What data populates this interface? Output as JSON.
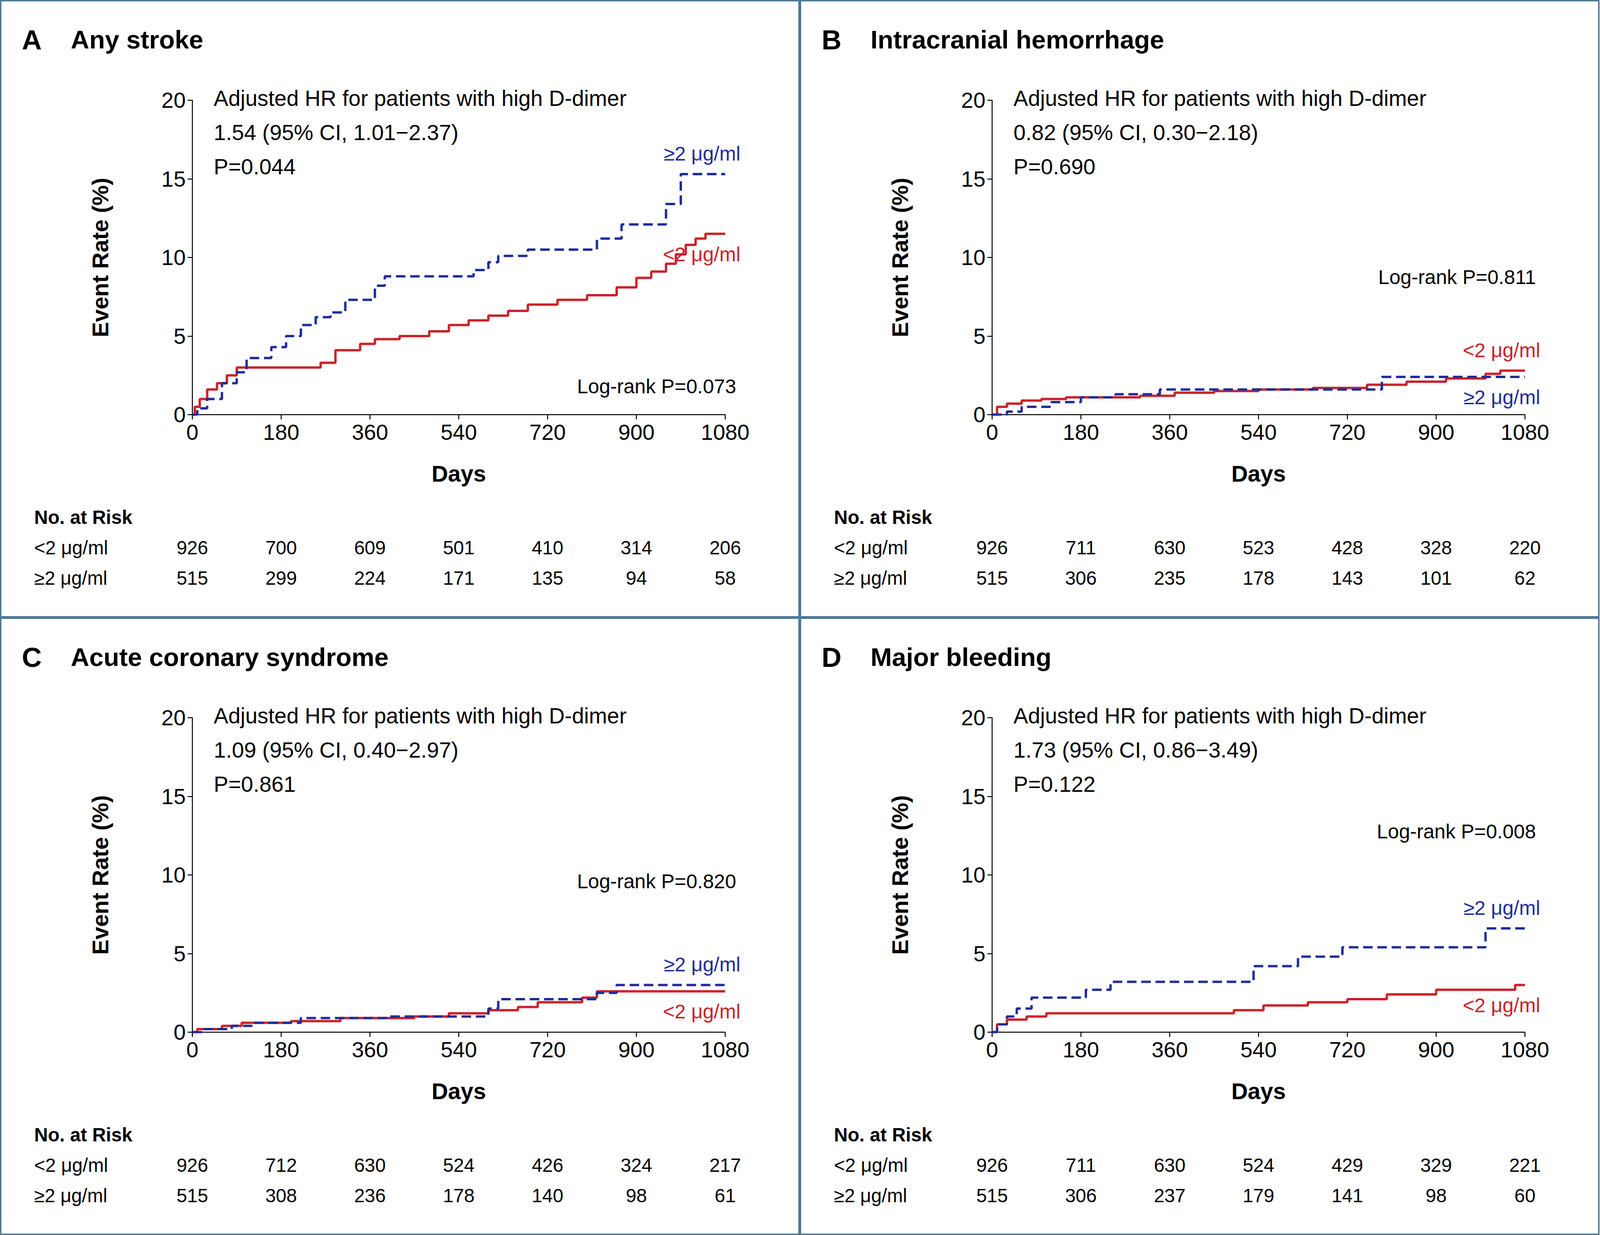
{
  "chart_data": [
    {
      "type": "step",
      "panel": "A",
      "title": "Any stroke",
      "annotations": {
        "hr": [
          "Adjusted HR for patients with high D-dimer",
          "1.54 (95% CI, 1.01−2.37)",
          "P=0.044"
        ],
        "log_rank": "Log-rank P=0.073"
      },
      "xlabel": "Days",
      "ylabel": "Event Rate (%)",
      "xlim": [
        0,
        1080
      ],
      "xticks": [
        0,
        180,
        360,
        540,
        720,
        900,
        1080
      ],
      "ylim": [
        0,
        20
      ],
      "yticks": [
        0,
        5,
        10,
        15,
        20
      ],
      "grid": false,
      "series": [
        {
          "name": "<2 μg/ml",
          "color": "#cc2229",
          "line_style": "solid",
          "x": [
            0,
            5,
            15,
            30,
            50,
            70,
            90,
            260,
            290,
            340,
            370,
            420,
            480,
            520,
            560,
            600,
            640,
            680,
            740,
            800,
            860,
            900,
            930,
            960,
            980,
            1000,
            1020,
            1040,
            1080
          ],
          "values": [
            0,
            0.5,
            1.0,
            1.6,
            2.0,
            2.5,
            3.0,
            3.3,
            4.1,
            4.5,
            4.8,
            5.0,
            5.3,
            5.7,
            6.0,
            6.3,
            6.6,
            7.0,
            7.3,
            7.6,
            8.1,
            8.7,
            9.1,
            9.6,
            10.2,
            10.8,
            11.2,
            11.5,
            11.5
          ]
        },
        {
          "name": "≥2 μg/ml",
          "color": "#1f2d9b",
          "line_style": "dashed",
          "x": [
            0,
            10,
            30,
            60,
            90,
            110,
            160,
            190,
            220,
            250,
            280,
            310,
            370,
            390,
            570,
            600,
            620,
            680,
            820,
            870,
            960,
            990,
            1080
          ],
          "values": [
            0,
            0.4,
            1.0,
            2.0,
            2.7,
            3.6,
            4.3,
            5.0,
            5.7,
            6.2,
            6.5,
            7.3,
            8.2,
            8.8,
            9.2,
            9.7,
            10.1,
            10.5,
            11.2,
            12.1,
            13.4,
            15.3,
            15.3
          ]
        }
      ],
      "risk_table": {
        "title": "No. at Risk",
        "x": [
          0,
          180,
          360,
          540,
          720,
          900,
          1080
        ],
        "rows": [
          {
            "name": "<2 μg/ml",
            "values": [
              926,
              700,
              609,
              501,
              410,
              314,
              206
            ]
          },
          {
            "name": "≥2 μg/ml",
            "values": [
              515,
              299,
              224,
              171,
              135,
              94,
              58
            ]
          }
        ]
      }
    },
    {
      "type": "step",
      "panel": "B",
      "title": "Intracranial hemorrhage",
      "annotations": {
        "hr": [
          "Adjusted HR for patients with high D-dimer",
          "0.82 (95% CI, 0.30−2.18)",
          "P=0.690"
        ],
        "log_rank": "Log-rank P=0.811"
      },
      "xlabel": "Days",
      "ylabel": "Event Rate (%)",
      "xlim": [
        0,
        1080
      ],
      "xticks": [
        0,
        180,
        360,
        540,
        720,
        900,
        1080
      ],
      "ylim": [
        0,
        20
      ],
      "yticks": [
        0,
        5,
        10,
        15,
        20
      ],
      "grid": false,
      "series": [
        {
          "name": "<2 μg/ml",
          "color": "#cc2229",
          "line_style": "solid",
          "x": [
            0,
            10,
            30,
            60,
            100,
            150,
            300,
            370,
            450,
            540,
            650,
            760,
            840,
            920,
            1000,
            1030,
            1080
          ],
          "values": [
            0,
            0.5,
            0.7,
            0.9,
            1.0,
            1.1,
            1.2,
            1.4,
            1.5,
            1.6,
            1.7,
            1.9,
            2.1,
            2.3,
            2.6,
            2.8,
            2.8
          ]
        },
        {
          "name": "≥2 μg/ml",
          "color": "#1f2d9b",
          "line_style": "dashed",
          "x": [
            0,
            30,
            60,
            120,
            180,
            250,
            340,
            790,
            1080
          ],
          "values": [
            0,
            0.2,
            0.5,
            0.8,
            1.1,
            1.3,
            1.6,
            2.4,
            2.4
          ]
        }
      ],
      "risk_table": {
        "title": "No. at Risk",
        "x": [
          0,
          180,
          360,
          540,
          720,
          900,
          1080
        ],
        "rows": [
          {
            "name": "<2 μg/ml",
            "values": [
              926,
              711,
              630,
              523,
              428,
              328,
              220
            ]
          },
          {
            "name": "≥2 μg/ml",
            "values": [
              515,
              306,
              235,
              178,
              143,
              101,
              62
            ]
          }
        ]
      }
    },
    {
      "type": "step",
      "panel": "C",
      "title": "Acute coronary syndrome",
      "annotations": {
        "hr": [
          "Adjusted HR for patients with high D-dimer",
          "1.09 (95% CI, 0.40−2.97)",
          "P=0.861"
        ],
        "log_rank": "Log-rank P=0.820"
      },
      "xlabel": "Days",
      "ylabel": "Event Rate (%)",
      "xlim": [
        0,
        1080
      ],
      "xticks": [
        0,
        180,
        360,
        540,
        720,
        900,
        1080
      ],
      "ylim": [
        0,
        20
      ],
      "yticks": [
        0,
        5,
        10,
        15,
        20
      ],
      "grid": false,
      "series": [
        {
          "name": "<2 μg/ml",
          "color": "#cc2229",
          "line_style": "solid",
          "x": [
            0,
            10,
            60,
            100,
            200,
            300,
            450,
            520,
            600,
            660,
            700,
            790,
            820,
            1080
          ],
          "values": [
            0,
            0.2,
            0.4,
            0.6,
            0.7,
            0.9,
            1.0,
            1.2,
            1.4,
            1.6,
            1.9,
            2.2,
            2.6,
            2.6
          ]
        },
        {
          "name": "≥2 μg/ml",
          "color": "#1f2d9b",
          "line_style": "dashed",
          "x": [
            0,
            20,
            80,
            120,
            220,
            400,
            600,
            620,
            820,
            860,
            1080
          ],
          "values": [
            0,
            0.2,
            0.4,
            0.6,
            0.9,
            1.0,
            1.5,
            2.1,
            2.5,
            3.0,
            3.0
          ]
        }
      ],
      "risk_table": {
        "title": "No. at Risk",
        "x": [
          0,
          180,
          360,
          540,
          720,
          900,
          1080
        ],
        "rows": [
          {
            "name": "<2 μg/ml",
            "values": [
              926,
              712,
              630,
              524,
              426,
              324,
              217
            ]
          },
          {
            "name": "≥2 μg/ml",
            "values": [
              515,
              308,
              236,
              178,
              140,
              98,
              61
            ]
          }
        ]
      }
    },
    {
      "type": "step",
      "panel": "D",
      "title": "Major bleeding",
      "annotations": {
        "hr": [
          "Adjusted HR for patients with high D-dimer",
          "1.73 (95% CI, 0.86−3.49)",
          "P=0.122"
        ],
        "log_rank": "Log-rank P=0.008"
      },
      "xlabel": "Days",
      "ylabel": "Event Rate (%)",
      "xlim": [
        0,
        1080
      ],
      "xticks": [
        0,
        180,
        360,
        540,
        720,
        900,
        1080
      ],
      "ylim": [
        0,
        20
      ],
      "yticks": [
        0,
        5,
        10,
        15,
        20
      ],
      "grid": false,
      "series": [
        {
          "name": "<2 μg/ml",
          "color": "#cc2229",
          "line_style": "solid",
          "x": [
            0,
            10,
            30,
            70,
            110,
            490,
            550,
            640,
            720,
            800,
            900,
            1060,
            1080
          ],
          "values": [
            0,
            0.5,
            0.8,
            1.0,
            1.2,
            1.4,
            1.7,
            1.9,
            2.1,
            2.4,
            2.7,
            3.0,
            3.0
          ]
        },
        {
          "name": "≥2 μg/ml",
          "color": "#1f2d9b",
          "line_style": "dashed",
          "x": [
            0,
            10,
            30,
            50,
            80,
            190,
            240,
            530,
            620,
            710,
            1000,
            1080
          ],
          "values": [
            0,
            0.5,
            1.0,
            1.5,
            2.2,
            2.7,
            3.2,
            4.2,
            4.8,
            5.4,
            6.6,
            6.6
          ]
        }
      ],
      "risk_table": {
        "title": "No. at Risk",
        "x": [
          0,
          180,
          360,
          540,
          720,
          900,
          1080
        ],
        "rows": [
          {
            "name": "<2 μg/ml",
            "values": [
              926,
              711,
              630,
              524,
              429,
              329,
              221
            ]
          },
          {
            "name": "≥2 μg/ml",
            "values": [
              515,
              306,
              237,
              179,
              141,
              98,
              60
            ]
          }
        ]
      }
    }
  ]
}
